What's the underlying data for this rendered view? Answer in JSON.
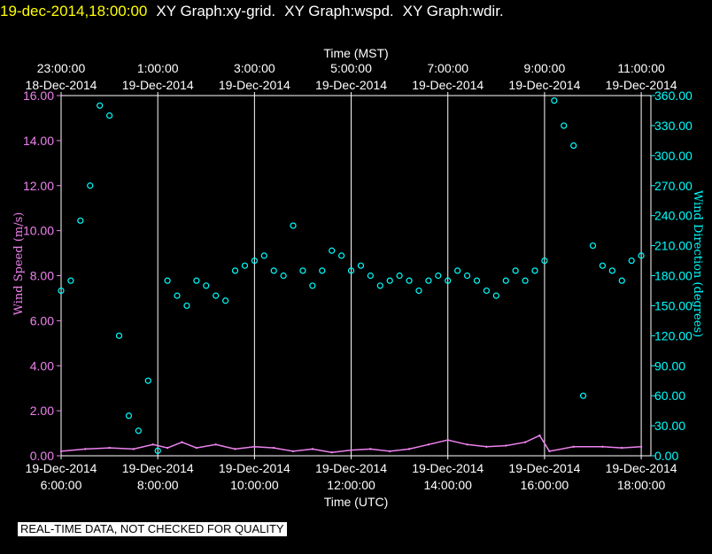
{
  "header": {
    "timestamp": "19-dec-2014,18:00:00",
    "titles": [
      "XY Graph:xy-grid.",
      "XY Graph:wspd.",
      "XY Graph:wdir."
    ]
  },
  "notice": "REAL-TIME DATA, NOT CHECKED FOR QUALITY",
  "colors": {
    "background": "#000000",
    "grid": "#ffffff",
    "wind_speed": "#ee82ee",
    "wind_direction": "#00ffff",
    "header_timestamp": "#ffff00"
  },
  "chart_data": {
    "type": "scatter",
    "x_top_label": "Time (MST)",
    "x_top_ticks": [
      {
        "hour": 0,
        "time": "23:00:00",
        "date": "18-Dec-2014"
      },
      {
        "hour": 2,
        "time": "1:00:00",
        "date": "19-Dec-2014"
      },
      {
        "hour": 4,
        "time": "3:00:00",
        "date": "19-Dec-2014"
      },
      {
        "hour": 6,
        "time": "5:00:00",
        "date": "19-Dec-2014"
      },
      {
        "hour": 8,
        "time": "7:00:00",
        "date": "19-Dec-2014"
      },
      {
        "hour": 10,
        "time": "9:00:00",
        "date": "19-Dec-2014"
      },
      {
        "hour": 12,
        "time": "11:00:00",
        "date": "19-Dec-2014"
      }
    ],
    "x_bottom_label": "Time (UTC)",
    "x_bottom_ticks": [
      {
        "hour": 0,
        "date": "19-Dec-2014",
        "time": "6:00:00"
      },
      {
        "hour": 2,
        "date": "19-Dec-2014",
        "time": "8:00:00"
      },
      {
        "hour": 4,
        "date": "19-Dec-2014",
        "time": "10:00:00"
      },
      {
        "hour": 6,
        "date": "19-Dec-2014",
        "time": "12:00:00"
      },
      {
        "hour": 8,
        "date": "19-Dec-2014",
        "time": "14:00:00"
      },
      {
        "hour": 10,
        "date": "19-Dec-2014",
        "time": "16:00:00"
      },
      {
        "hour": 12,
        "date": "19-Dec-2014",
        "time": "18:00:00"
      }
    ],
    "x_range_hours": [
      0,
      12.2
    ],
    "y_left_label": "Wind Speed (m/s)",
    "y_left_range": [
      0,
      16
    ],
    "y_left_ticks": [
      "0.00",
      "2.00",
      "4.00",
      "6.00",
      "8.00",
      "10.00",
      "12.00",
      "14.00",
      "16.00"
    ],
    "y_right_label": "Wind Direction (degrees)",
    "y_right_range": [
      0,
      360
    ],
    "y_right_ticks": [
      "0.00",
      "30.00",
      "60.00",
      "90.00",
      "120.00",
      "150.00",
      "180.00",
      "210.00",
      "240.00",
      "270.00",
      "300.00",
      "330.00",
      "360.00"
    ],
    "grid": true,
    "series": [
      {
        "name": "Wind Speed (m/s)",
        "axis": "left",
        "style": "line",
        "points": [
          [
            0.0,
            0.2
          ],
          [
            0.5,
            0.3
          ],
          [
            1.0,
            0.35
          ],
          [
            1.5,
            0.3
          ],
          [
            1.9,
            0.5
          ],
          [
            2.2,
            0.35
          ],
          [
            2.5,
            0.6
          ],
          [
            2.8,
            0.35
          ],
          [
            3.2,
            0.5
          ],
          [
            3.6,
            0.3
          ],
          [
            4.0,
            0.4
          ],
          [
            4.4,
            0.35
          ],
          [
            4.8,
            0.2
          ],
          [
            5.2,
            0.3
          ],
          [
            5.6,
            0.15
          ],
          [
            6.0,
            0.25
          ],
          [
            6.4,
            0.3
          ],
          [
            6.8,
            0.2
          ],
          [
            7.2,
            0.3
          ],
          [
            7.6,
            0.5
          ],
          [
            8.0,
            0.7
          ],
          [
            8.4,
            0.5
          ],
          [
            8.8,
            0.4
          ],
          [
            9.2,
            0.45
          ],
          [
            9.6,
            0.6
          ],
          [
            9.9,
            0.9
          ],
          [
            10.1,
            0.2
          ],
          [
            10.6,
            0.4
          ],
          [
            11.2,
            0.4
          ],
          [
            11.6,
            0.35
          ],
          [
            12.0,
            0.4
          ]
        ]
      },
      {
        "name": "Wind Direction (degrees)",
        "axis": "right",
        "style": "scatter",
        "points": [
          [
            0.0,
            165
          ],
          [
            0.2,
            175
          ],
          [
            0.4,
            235
          ],
          [
            0.6,
            270
          ],
          [
            0.8,
            350
          ],
          [
            1.0,
            340
          ],
          [
            1.2,
            120
          ],
          [
            1.4,
            40
          ],
          [
            1.6,
            25
          ],
          [
            1.8,
            75
          ],
          [
            2.0,
            5
          ],
          [
            2.2,
            175
          ],
          [
            2.4,
            160
          ],
          [
            2.6,
            150
          ],
          [
            2.8,
            175
          ],
          [
            3.0,
            170
          ],
          [
            3.2,
            160
          ],
          [
            3.4,
            155
          ],
          [
            3.6,
            185
          ],
          [
            3.8,
            190
          ],
          [
            4.0,
            195
          ],
          [
            4.2,
            200
          ],
          [
            4.4,
            185
          ],
          [
            4.6,
            180
          ],
          [
            4.8,
            230
          ],
          [
            5.0,
            185
          ],
          [
            5.2,
            170
          ],
          [
            5.4,
            185
          ],
          [
            5.6,
            205
          ],
          [
            5.8,
            200
          ],
          [
            6.0,
            185
          ],
          [
            6.2,
            190
          ],
          [
            6.4,
            180
          ],
          [
            6.6,
            170
          ],
          [
            6.8,
            175
          ],
          [
            7.0,
            180
          ],
          [
            7.2,
            175
          ],
          [
            7.4,
            165
          ],
          [
            7.6,
            175
          ],
          [
            7.8,
            180
          ],
          [
            8.0,
            175
          ],
          [
            8.2,
            185
          ],
          [
            8.4,
            180
          ],
          [
            8.6,
            175
          ],
          [
            8.8,
            165
          ],
          [
            9.0,
            160
          ],
          [
            9.2,
            175
          ],
          [
            9.4,
            185
          ],
          [
            9.6,
            175
          ],
          [
            9.8,
            185
          ],
          [
            10.0,
            195
          ],
          [
            10.2,
            355
          ],
          [
            10.4,
            330
          ],
          [
            10.6,
            310
          ],
          [
            10.8,
            60
          ],
          [
            11.0,
            210
          ],
          [
            11.2,
            190
          ],
          [
            11.4,
            185
          ],
          [
            11.6,
            175
          ],
          [
            11.8,
            195
          ],
          [
            12.0,
            200
          ]
        ]
      }
    ]
  }
}
